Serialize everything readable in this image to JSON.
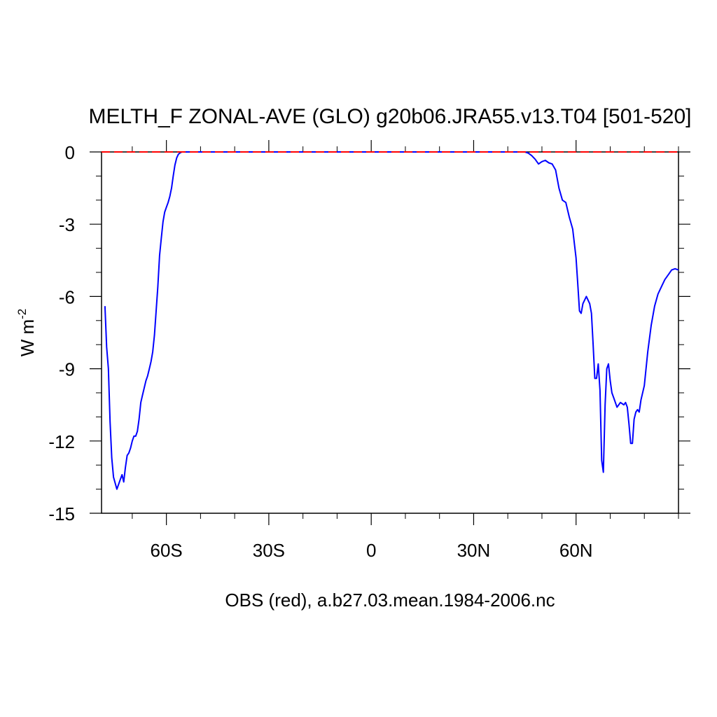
{
  "chart_data": {
    "type": "line",
    "title": "MELTH_F ZONAL-AVE (GLO) g20b06.JRA55.v13.T04 [501-520]",
    "ylabel_main": "W m",
    "ylabel_sup": "-2",
    "xlabel": "OBS (red), a.b27.03.mean.1984-2006.nc",
    "xlim": [
      -79,
      90
    ],
    "ylim": [
      -15,
      0
    ],
    "x_ticks": [
      {
        "value": -60,
        "label": "60S"
      },
      {
        "value": -30,
        "label": "30S"
      },
      {
        "value": 0,
        "label": "0"
      },
      {
        "value": 30,
        "label": "30N"
      },
      {
        "value": 60,
        "label": "60N"
      }
    ],
    "y_ticks": [
      {
        "value": 0,
        "label": "0"
      },
      {
        "value": -3,
        "label": "-3"
      },
      {
        "value": -6,
        "label": "-6"
      },
      {
        "value": -9,
        "label": "-9"
      },
      {
        "value": -12,
        "label": "-12"
      },
      {
        "value": -15,
        "label": "-15"
      }
    ],
    "series": [
      {
        "color": "#0000ff",
        "style": "solid",
        "x": [
          -78,
          -77.5,
          -77,
          -76.5,
          -76,
          -75.5,
          -74.5,
          -74,
          -73.5,
          -73,
          -72.5,
          -72,
          -71.5,
          -71,
          -70.5,
          -70,
          -69.5,
          -69,
          -68.5,
          -68,
          -67.5,
          -67,
          -66,
          -65.5,
          -65,
          -64.5,
          -64,
          -63.5,
          -63,
          -62.5,
          -62,
          -61.5,
          -61,
          -60.5,
          -60,
          -59.5,
          -59,
          -58.5,
          -58,
          -57.5,
          -57,
          -56.5,
          -56,
          -55.5,
          -55,
          -54,
          -52,
          -50,
          -30,
          0,
          30,
          45,
          46,
          47,
          48,
          49,
          50,
          51,
          52,
          53,
          54,
          55,
          56,
          57,
          58,
          59,
          60,
          60.5,
          61,
          61.5,
          62,
          63,
          64,
          64.5,
          65,
          65.5,
          66,
          66.5,
          67,
          67.5,
          68,
          68.5,
          69,
          69.5,
          70,
          70.5,
          71,
          72,
          73,
          74,
          74.5,
          75,
          75.5,
          76,
          76.5,
          77,
          77.5,
          78,
          78.5,
          79,
          80,
          81,
          82,
          83,
          84,
          85,
          86,
          87,
          88,
          89,
          90
        ],
        "y": [
          -6.4,
          -8.1,
          -9.0,
          -11.2,
          -12.7,
          -13.5,
          -14.0,
          -13.8,
          -13.6,
          -13.4,
          -13.7,
          -13.1,
          -12.6,
          -12.5,
          -12.3,
          -12.0,
          -11.8,
          -11.8,
          -11.6,
          -11.1,
          -10.4,
          -10.1,
          -9.5,
          -9.3,
          -9.0,
          -8.7,
          -8.3,
          -7.6,
          -6.6,
          -5.6,
          -4.3,
          -3.6,
          -2.9,
          -2.5,
          -2.3,
          -2.1,
          -1.85,
          -1.5,
          -1.0,
          -0.55,
          -0.25,
          -0.1,
          -0.04,
          0,
          0,
          0,
          0,
          0,
          0,
          0,
          0,
          0,
          -0.05,
          -0.15,
          -0.3,
          -0.5,
          -0.4,
          -0.35,
          -0.45,
          -0.5,
          -0.75,
          -1.5,
          -2.0,
          -2.1,
          -2.7,
          -3.2,
          -4.4,
          -5.5,
          -6.6,
          -6.7,
          -6.3,
          -6.0,
          -6.3,
          -6.7,
          -8.0,
          -9.4,
          -9.4,
          -8.8,
          -9.9,
          -12.8,
          -13.3,
          -10.5,
          -9.0,
          -8.8,
          -9.5,
          -10.0,
          -10.2,
          -10.6,
          -10.4,
          -10.5,
          -10.4,
          -10.6,
          -11.3,
          -12.1,
          -12.1,
          -11.1,
          -10.8,
          -10.7,
          -10.8,
          -10.3,
          -9.7,
          -8.3,
          -7.2,
          -6.4,
          -5.9,
          -5.6,
          -5.3,
          -5.1,
          -4.9,
          -4.85,
          -4.9
        ]
      },
      {
        "color": "#ff0000",
        "style": "dashed",
        "x": [
          -79,
          90
        ],
        "y": [
          0,
          0
        ]
      }
    ]
  }
}
